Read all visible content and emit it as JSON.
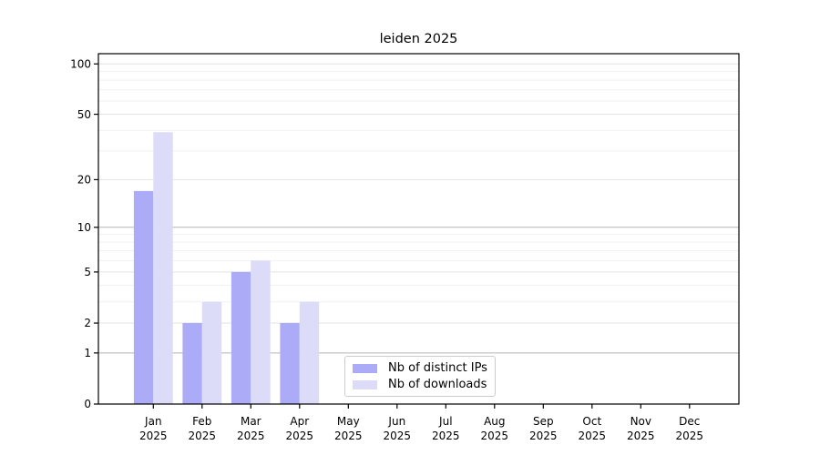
{
  "chart_data": {
    "type": "bar",
    "title": "leiden 2025",
    "categories": [
      "Jan",
      "Feb",
      "Mar",
      "Apr",
      "May",
      "Jun",
      "Jul",
      "Aug",
      "Sep",
      "Oct",
      "Nov",
      "Dec"
    ],
    "x_year": "2025",
    "series": [
      {
        "name": "Nb of distinct IPs",
        "color": "#ababf7",
        "values": [
          17,
          2,
          5,
          2,
          0,
          0,
          0,
          0,
          0,
          0,
          0,
          0
        ]
      },
      {
        "name": "Nb of downloads",
        "color": "#dcdcf9",
        "values": [
          39,
          3,
          6,
          3,
          0,
          0,
          0,
          0,
          0,
          0,
          0,
          0
        ]
      }
    ],
    "yscale": "log(1+x)",
    "yticks": [
      0,
      1,
      2,
      5,
      10,
      20,
      50,
      100
    ],
    "minor_yticks": [
      3,
      4,
      6,
      7,
      8,
      9,
      30,
      40,
      60,
      70,
      80,
      90
    ],
    "ylim": [
      0,
      115
    ],
    "grid": "on",
    "legend_position": "bottom-center-inside",
    "colors": {
      "axis": "#000000",
      "grid_major_strong": "#b5b5b5",
      "grid_major": "#e3e3e3",
      "grid_minor": "#f1f1f1",
      "text": "#000000"
    }
  }
}
